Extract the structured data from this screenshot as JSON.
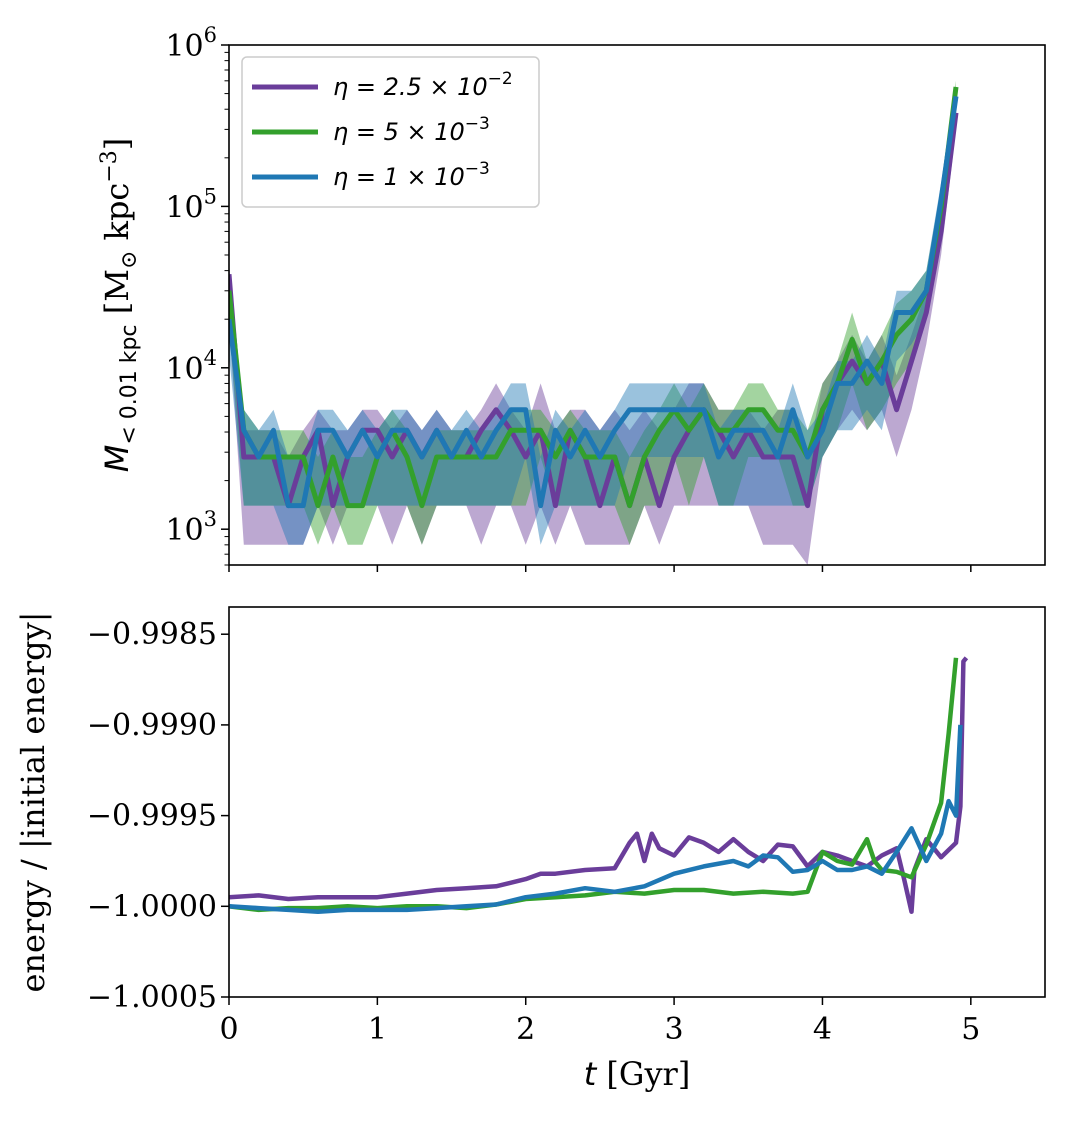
{
  "chart_data": [
    {
      "type": "line",
      "panel": "top",
      "yscale": "log",
      "ylabel": {
        "main": "M",
        "sub": "< 0.01 kpc",
        "units_open": " [M",
        "units_sun": "⊙",
        "units_kpc": " kpc",
        "units_exp": "−3",
        "units_close": "]"
      },
      "xlim": [
        0,
        5.5
      ],
      "ylim": [
        600,
        1000000
      ],
      "yticks": [
        {
          "value": 1000,
          "base": "10",
          "exp": "3"
        },
        {
          "value": 10000,
          "base": "10",
          "exp": "4"
        },
        {
          "value": 100000,
          "base": "10",
          "exp": "5"
        },
        {
          "value": 1000000,
          "base": "10",
          "exp": "6"
        }
      ],
      "legend": {
        "placement": "top-left",
        "entries": [
          {
            "name": "η = 2.5 × 10",
            "exp": "−2",
            "color": "#6a3d9a"
          },
          {
            "name": "η = 5 × 10",
            "exp": "−3",
            "color": "#33a02c"
          },
          {
            "name": "η = 1 × 10",
            "exp": "−3",
            "color": "#1f78b4"
          }
        ]
      },
      "series": [
        {
          "name": "η = 2.5 × 10^-2",
          "color": "#6a3d9a",
          "x": [
            0,
            0.1,
            0.2,
            0.3,
            0.4,
            0.5,
            0.6,
            0.7,
            0.8,
            0.9,
            1.0,
            1.1,
            1.2,
            1.3,
            1.4,
            1.5,
            1.6,
            1.7,
            1.8,
            1.9,
            2.0,
            2.1,
            2.2,
            2.3,
            2.4,
            2.5,
            2.6,
            2.7,
            2.8,
            2.9,
            3.0,
            3.1,
            3.2,
            3.3,
            3.4,
            3.5,
            3.6,
            3.7,
            3.8,
            3.9,
            4.0,
            4.1,
            4.2,
            4.3,
            4.4,
            4.5,
            4.6,
            4.7,
            4.8,
            4.9
          ],
          "y": [
            38000,
            2800,
            2800,
            2800,
            1400,
            2800,
            4100,
            1400,
            2800,
            4100,
            4100,
            2800,
            4100,
            2800,
            4100,
            2800,
            2800,
            4100,
            5500,
            4100,
            2800,
            4100,
            1400,
            4100,
            2800,
            1400,
            2800,
            1400,
            2800,
            1400,
            2800,
            4100,
            5500,
            4100,
            2800,
            4100,
            2800,
            2800,
            2800,
            1400,
            5500,
            8000,
            11000,
            8000,
            11000,
            5500,
            11000,
            22000,
            70000,
            380000
          ],
          "lower": [
            20000,
            800,
            800,
            800,
            800,
            800,
            1400,
            800,
            1400,
            1400,
            1400,
            800,
            1400,
            800,
            1400,
            1400,
            1400,
            800,
            1400,
            1400,
            800,
            1400,
            800,
            1400,
            800,
            800,
            800,
            800,
            1400,
            800,
            1400,
            1400,
            1400,
            1400,
            1400,
            1400,
            800,
            800,
            800,
            600,
            2800,
            4100,
            5500,
            4100,
            5500,
            2800,
            5500,
            14000,
            50000,
            300000
          ],
          "upper": [
            45000,
            4100,
            4100,
            4100,
            2800,
            4100,
            5500,
            4100,
            4100,
            5500,
            5500,
            4100,
            5500,
            4100,
            5500,
            4100,
            4100,
            5500,
            8000,
            5500,
            4100,
            8000,
            4100,
            5500,
            5500,
            4100,
            5500,
            4100,
            5500,
            4100,
            5500,
            8000,
            8000,
            5500,
            5500,
            5500,
            4100,
            5500,
            5500,
            2800,
            8000,
            11000,
            16000,
            11000,
            16000,
            9000,
            16000,
            30000,
            90000,
            450000
          ]
        },
        {
          "name": "η = 5 × 10^-3",
          "color": "#33a02c",
          "x": [
            0,
            0.1,
            0.2,
            0.3,
            0.4,
            0.5,
            0.6,
            0.7,
            0.8,
            0.9,
            1.0,
            1.1,
            1.2,
            1.3,
            1.4,
            1.5,
            1.6,
            1.7,
            1.8,
            1.9,
            2.0,
            2.1,
            2.2,
            2.3,
            2.4,
            2.5,
            2.6,
            2.7,
            2.8,
            2.9,
            3.0,
            3.1,
            3.2,
            3.3,
            3.4,
            3.5,
            3.6,
            3.7,
            3.8,
            3.9,
            4.0,
            4.1,
            4.2,
            4.3,
            4.4,
            4.5,
            4.6,
            4.7,
            4.8,
            4.9
          ],
          "y": [
            30000,
            4100,
            2800,
            2800,
            2800,
            2800,
            1400,
            2800,
            1400,
            1400,
            2800,
            4100,
            2800,
            1400,
            2800,
            2800,
            2800,
            2800,
            2800,
            4100,
            4100,
            4100,
            2800,
            4100,
            2800,
            2800,
            2800,
            1400,
            2800,
            4100,
            5500,
            4100,
            5500,
            4100,
            4100,
            5500,
            5500,
            4100,
            4100,
            2800,
            5500,
            8000,
            15000,
            8000,
            11000,
            16000,
            20000,
            30000,
            100000,
            550000
          ],
          "lower": [
            18000,
            1400,
            1400,
            1400,
            1400,
            1400,
            800,
            1400,
            800,
            800,
            1400,
            1400,
            1400,
            800,
            1400,
            1400,
            1400,
            1400,
            1400,
            1400,
            1400,
            2800,
            1400,
            1400,
            1400,
            1400,
            1400,
            800,
            1400,
            1400,
            2800,
            1400,
            2800,
            1400,
            1400,
            2800,
            2800,
            2800,
            1400,
            1400,
            2800,
            4100,
            8000,
            4100,
            5500,
            8000,
            11000,
            20000,
            70000,
            450000
          ],
          "upper": [
            40000,
            5500,
            4100,
            4100,
            4100,
            4100,
            2800,
            4100,
            2800,
            2800,
            4100,
            5500,
            4100,
            2800,
            4100,
            4100,
            4100,
            4100,
            4100,
            5500,
            5500,
            5500,
            4100,
            5500,
            4100,
            4100,
            4100,
            2800,
            4100,
            5500,
            8000,
            5500,
            8000,
            5500,
            5500,
            8000,
            8000,
            5500,
            5500,
            4100,
            8000,
            11000,
            22000,
            11000,
            16000,
            25000,
            30000,
            40000,
            130000,
            600000
          ]
        },
        {
          "name": "η = 1 × 10^-3",
          "color": "#1f78b4",
          "x": [
            0,
            0.1,
            0.2,
            0.3,
            0.4,
            0.5,
            0.6,
            0.7,
            0.8,
            0.9,
            1.0,
            1.1,
            1.2,
            1.3,
            1.4,
            1.5,
            1.6,
            1.7,
            1.8,
            1.9,
            2.0,
            2.1,
            2.2,
            2.3,
            2.4,
            2.5,
            2.6,
            2.7,
            2.8,
            2.9,
            3.0,
            3.1,
            3.2,
            3.3,
            3.4,
            3.5,
            3.6,
            3.7,
            3.8,
            3.9,
            4.0,
            4.1,
            4.2,
            4.3,
            4.4,
            4.5,
            4.6,
            4.7,
            4.8,
            4.9
          ],
          "y": [
            20000,
            4100,
            2800,
            4100,
            1400,
            1400,
            4100,
            4100,
            2800,
            4100,
            2800,
            4100,
            4100,
            2800,
            4100,
            2800,
            4100,
            2800,
            4100,
            5500,
            5500,
            1400,
            4100,
            2800,
            4100,
            2800,
            4100,
            5500,
            5500,
            5500,
            5500,
            5500,
            5500,
            2800,
            4100,
            4100,
            4100,
            2800,
            5500,
            2800,
            4100,
            8000,
            8000,
            11000,
            8000,
            22000,
            22000,
            30000,
            110000,
            480000
          ],
          "lower": [
            12000,
            1400,
            1400,
            1400,
            800,
            800,
            1400,
            1400,
            1400,
            1400,
            1400,
            1400,
            1400,
            1400,
            1400,
            1400,
            1400,
            1400,
            1400,
            1400,
            2800,
            800,
            1400,
            1400,
            1400,
            1400,
            1400,
            2800,
            2800,
            2800,
            2800,
            2800,
            2800,
            1400,
            1400,
            1400,
            1400,
            1400,
            1400,
            1400,
            2800,
            4100,
            4100,
            5500,
            4100,
            11000,
            14000,
            20000,
            80000,
            420000
          ],
          "upper": [
            30000,
            5500,
            4100,
            5500,
            2800,
            2800,
            5500,
            5500,
            4100,
            5500,
            4100,
            5500,
            5500,
            4100,
            5500,
            4100,
            5500,
            4100,
            5500,
            8000,
            8000,
            2800,
            5500,
            4100,
            5500,
            4100,
            5500,
            8000,
            8000,
            8000,
            8000,
            8000,
            8000,
            4100,
            5500,
            5500,
            5500,
            4100,
            8000,
            4100,
            5500,
            11000,
            11000,
            16000,
            11000,
            30000,
            30000,
            40000,
            140000,
            550000
          ]
        }
      ]
    },
    {
      "type": "line",
      "panel": "bottom",
      "ylabel": "energy / |initial energy|",
      "xlabel": {
        "main": "t",
        "units": " [Gyr]"
      },
      "xlim": [
        0,
        5.5
      ],
      "ylim": [
        -1.0005,
        -0.99835
      ],
      "xticks": [
        "0",
        "1",
        "2",
        "3",
        "4",
        "5"
      ],
      "yticks": [
        "−1.0005",
        "−1.0000",
        "−0.9995",
        "−0.9990",
        "−0.9985"
      ],
      "ytick_values": [
        -1.0005,
        -1.0,
        -0.9995,
        -0.999,
        -0.9985
      ],
      "series": [
        {
          "name": "η = 2.5 × 10^-2",
          "color": "#6a3d9a",
          "x": [
            0,
            0.2,
            0.4,
            0.6,
            0.8,
            1.0,
            1.2,
            1.4,
            1.6,
            1.8,
            2.0,
            2.1,
            2.2,
            2.4,
            2.6,
            2.7,
            2.75,
            2.8,
            2.85,
            2.9,
            3.0,
            3.1,
            3.2,
            3.3,
            3.4,
            3.5,
            3.6,
            3.7,
            3.8,
            3.9,
            4.0,
            4.1,
            4.2,
            4.3,
            4.4,
            4.5,
            4.55,
            4.6,
            4.62,
            4.7,
            4.8,
            4.9,
            4.93,
            4.95,
            4.97
          ],
          "y": [
            -0.99995,
            -0.99994,
            -0.99996,
            -0.99995,
            -0.99995,
            -0.99995,
            -0.99993,
            -0.99991,
            -0.9999,
            -0.99989,
            -0.99985,
            -0.99982,
            -0.99982,
            -0.9998,
            -0.99979,
            -0.99965,
            -0.9996,
            -0.99975,
            -0.9996,
            -0.99968,
            -0.99972,
            -0.99962,
            -0.99965,
            -0.9997,
            -0.99963,
            -0.9997,
            -0.99975,
            -0.99966,
            -0.99967,
            -0.99978,
            -0.9997,
            -0.99972,
            -0.99975,
            -0.99978,
            -0.99972,
            -0.99968,
            -0.99985,
            -1.00003,
            -0.9998,
            -0.99963,
            -0.99973,
            -0.99965,
            -0.99945,
            -0.99865,
            -0.99863
          ]
        },
        {
          "name": "η = 5 × 10^-3",
          "color": "#33a02c",
          "x": [
            0,
            0.2,
            0.4,
            0.6,
            0.8,
            1.0,
            1.2,
            1.4,
            1.6,
            1.8,
            2.0,
            2.2,
            2.4,
            2.6,
            2.8,
            3.0,
            3.2,
            3.4,
            3.6,
            3.8,
            3.9,
            4.0,
            4.1,
            4.2,
            4.3,
            4.35,
            4.4,
            4.5,
            4.6,
            4.7,
            4.8,
            4.85,
            4.9
          ],
          "y": [
            -1.0,
            -1.00002,
            -1.00001,
            -1.00001,
            -1.0,
            -1.00001,
            -1.0,
            -1.0,
            -1.00001,
            -0.99999,
            -0.99996,
            -0.99995,
            -0.99994,
            -0.99992,
            -0.99993,
            -0.99991,
            -0.99991,
            -0.99993,
            -0.99992,
            -0.99993,
            -0.99992,
            -0.9997,
            -0.99975,
            -0.99977,
            -0.99963,
            -0.99975,
            -0.9998,
            -0.99981,
            -0.99984,
            -0.99966,
            -0.99943,
            -0.99905,
            -0.99863
          ]
        },
        {
          "name": "η = 1 × 10^-3",
          "color": "#1f78b4",
          "x": [
            0,
            0.2,
            0.4,
            0.6,
            0.8,
            1.0,
            1.2,
            1.4,
            1.6,
            1.8,
            2.0,
            2.2,
            2.4,
            2.6,
            2.8,
            3.0,
            3.2,
            3.4,
            3.5,
            3.6,
            3.7,
            3.8,
            3.9,
            4.0,
            4.1,
            4.2,
            4.3,
            4.4,
            4.5,
            4.6,
            4.7,
            4.8,
            4.85,
            4.9,
            4.93
          ],
          "y": [
            -1.0,
            -1.00001,
            -1.00002,
            -1.00003,
            -1.00002,
            -1.00002,
            -1.00002,
            -1.00001,
            -1.0,
            -0.99999,
            -0.99995,
            -0.99993,
            -0.9999,
            -0.99992,
            -0.99989,
            -0.99982,
            -0.99978,
            -0.99975,
            -0.99978,
            -0.99972,
            -0.99973,
            -0.99981,
            -0.9998,
            -0.99975,
            -0.9998,
            -0.9998,
            -0.99978,
            -0.99982,
            -0.9997,
            -0.99957,
            -0.99975,
            -0.9996,
            -0.99942,
            -0.9995,
            -0.999
          ]
        }
      ]
    }
  ]
}
